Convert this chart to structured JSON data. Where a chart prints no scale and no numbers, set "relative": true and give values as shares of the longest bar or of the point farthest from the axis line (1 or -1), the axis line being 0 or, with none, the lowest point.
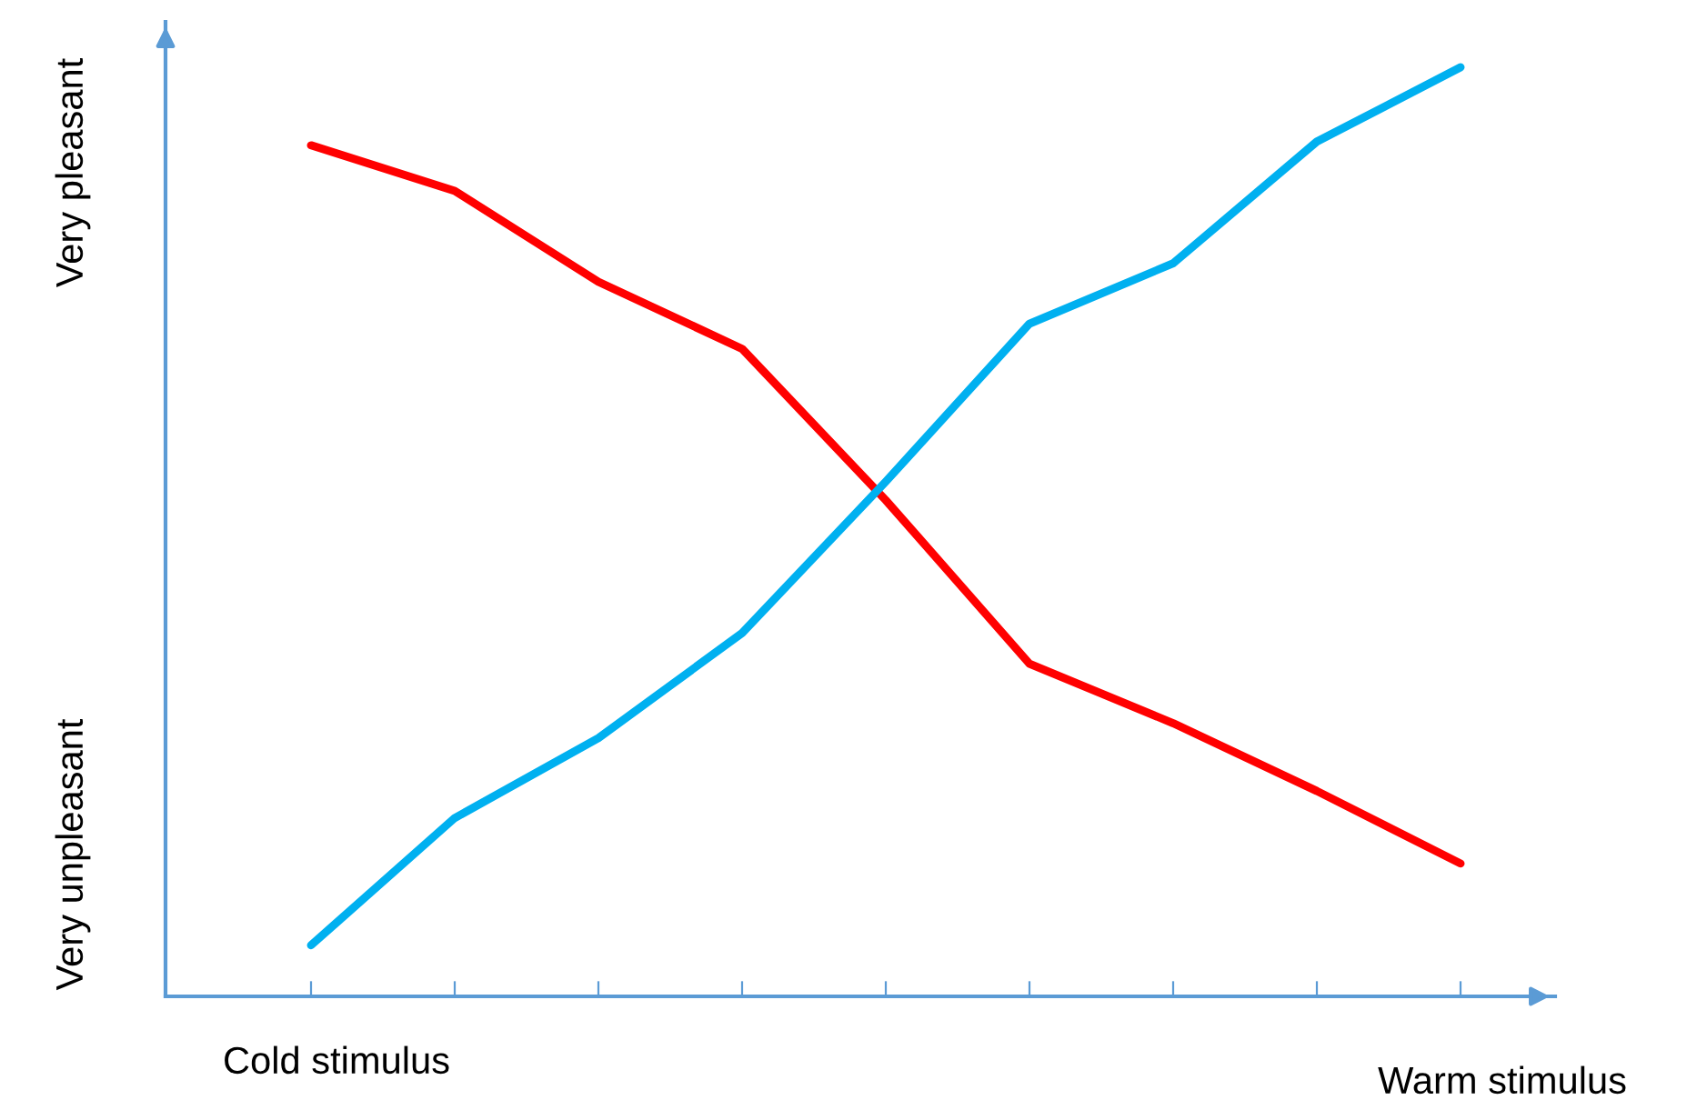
{
  "chart_data": {
    "type": "line",
    "relative": true,
    "xlabel": "Cold stimulus",
    "ylabel": "Very unpleasant",
    "annotations": [
      "Very pleasant",
      "Warm stimulus"
    ],
    "categories": [
      null,
      null,
      null,
      null,
      null,
      null,
      null,
      null,
      null
    ],
    "series": [
      {
        "color": "#ff0000",
        "values": [
          0.916,
          0.867,
          0.769,
          0.697,
          0.534,
          0.358,
          0.294,
          0.221,
          0.143
        ]
      },
      {
        "color": "#00b0f0",
        "values": [
          0.055,
          0.192,
          0.278,
          0.391,
          0.554,
          0.724,
          0.789,
          0.92,
          1.0
        ]
      }
    ],
    "grid": false,
    "marker": "none",
    "line_style": "solid"
  }
}
